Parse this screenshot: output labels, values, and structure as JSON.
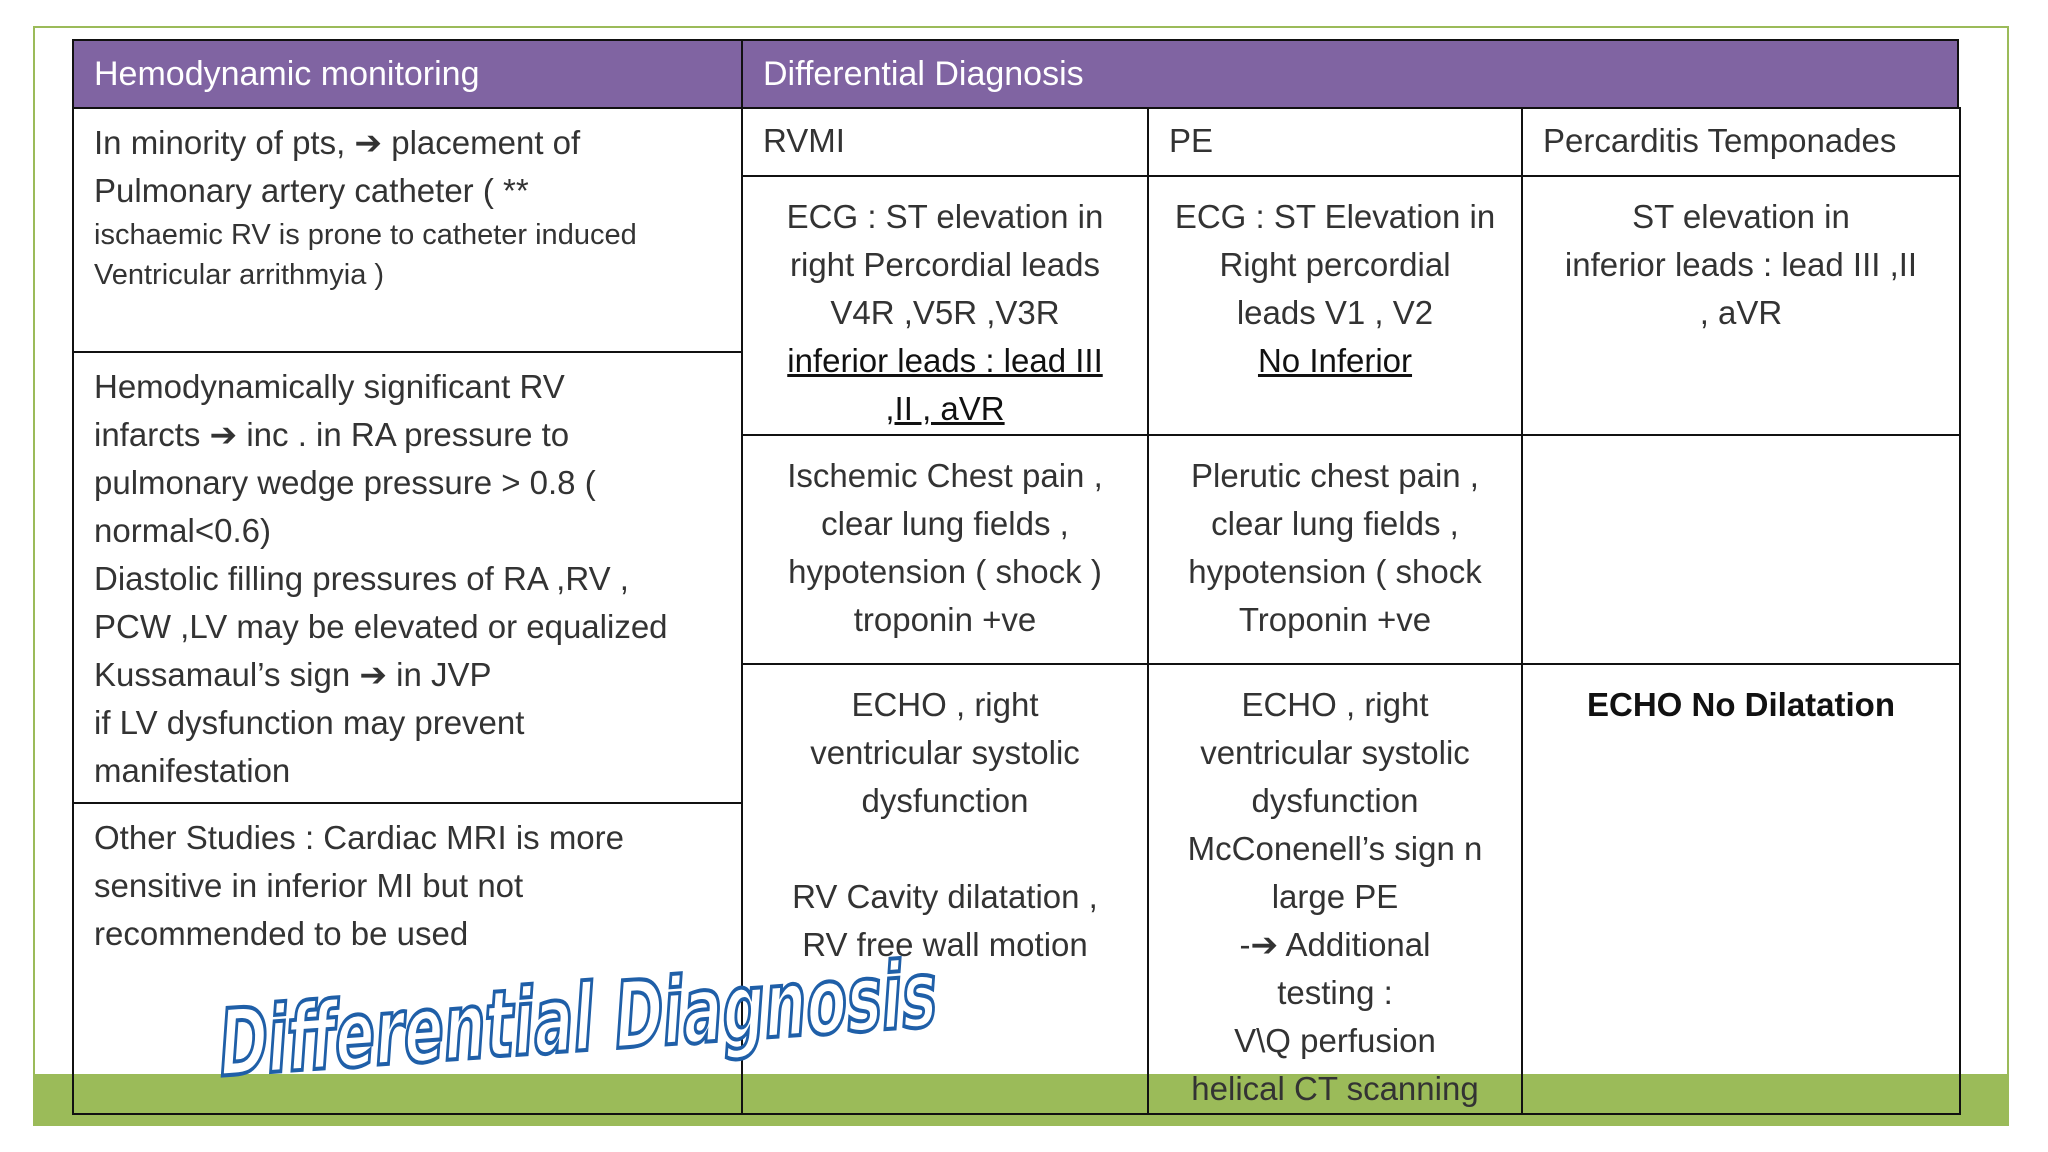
{
  "left": {
    "header": "Hemodynamic monitoring",
    "cells": [
      {
        "lines": [
          "In minority of pts, ➔ placement of",
          "Pulmonary artery catheter ( **"
        ],
        "note": [
          "ischaemic RV is prone to catheter induced",
          "Ventricular arrithmyia )"
        ]
      },
      {
        "lines": [
          "Hemodynamically significant RV",
          "infarcts ➔ inc . in RA pressure to",
          "pulmonary wedge pressure > 0.8  (",
          "normal<0.6)",
          "Diastolic filling pressures of RA ,RV ,",
          "PCW ,LV may be elevated or equalized",
          "Kussamaul’s sign ➔ in JVP",
          "if LV dysfunction may  prevent",
          "manifestation"
        ]
      },
      {
        "lines": [
          "Other Studies : Cardiac MRI  is more",
          "sensitive in inferior MI  but not",
          "recommended to be used"
        ]
      }
    ]
  },
  "right": {
    "header": "Differential Diagnosis",
    "columns": [
      "RVMI",
      "PE",
      "Percarditis Temponades"
    ],
    "rows": [
      [
        {
          "lines": [
            "ECG : ST elevation in",
            "right Percordial leads",
            "V4R ,V5R ,V3R"
          ],
          "underlined": [
            "inferior leads : lead III",
            ",II , aVR"
          ]
        },
        {
          "lines": [
            "ECG : ST Elevation in",
            "Right percordial",
            "leads V1 , V2"
          ],
          "underlined": [
            "No Inferior"
          ]
        },
        {
          "lines": [
            "ST elevation in",
            "inferior leads : lead III ,II",
            ", aVR"
          ]
        }
      ],
      [
        {
          "lines": [
            "Ischemic Chest pain ,",
            "clear lung fields ,",
            "hypotension ( shock )",
            "troponin +ve"
          ]
        },
        {
          "lines": [
            "Plerutic chest pain ,",
            "clear lung fields ,",
            "hypotension ( shock",
            "Troponin +ve"
          ]
        },
        {
          "lines": []
        }
      ],
      [
        {
          "lines": [
            "ECHO , right",
            "ventricular  systolic",
            "dysfunction"
          ],
          "more": [
            "RV Cavity dilatation ,",
            "RV free wall motion"
          ]
        },
        {
          "lines": [
            "ECHO , right",
            "ventricular  systolic",
            "dysfunction",
            "McConenell’s sign n",
            "large PE",
            "-➔ Additional",
            "testing :",
            "V\\Q perfusion",
            "helical CT scanning"
          ]
        },
        {
          "lines": [],
          "bold": [
            "ECHO  No Dilatation"
          ]
        }
      ]
    ]
  },
  "wordart": "Differential Diagnosis"
}
